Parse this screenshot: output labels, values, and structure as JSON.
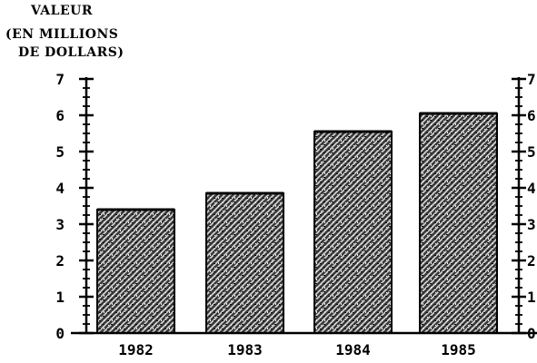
{
  "chart_data": {
    "type": "bar",
    "title": "",
    "ylabel_lines": [
      "VALEUR",
      "(EN MILLIONS",
      "DE DOLLARS)"
    ],
    "xlabel": "",
    "categories": [
      "1982",
      "1983",
      "1984",
      "1985"
    ],
    "values": [
      3.4,
      3.85,
      5.55,
      6.05
    ],
    "ylim": [
      0,
      7
    ],
    "yticks": [
      0,
      1,
      2,
      3,
      4,
      5,
      6,
      7
    ],
    "minor_ticks_per_unit": 4,
    "right_axis": true,
    "grid": false,
    "legend": "none",
    "bar_fill": "hatched",
    "colors": {
      "bar_dark": "#1a1a1a",
      "bar_light": "#cfcfcf",
      "axis": "#000000"
    }
  }
}
